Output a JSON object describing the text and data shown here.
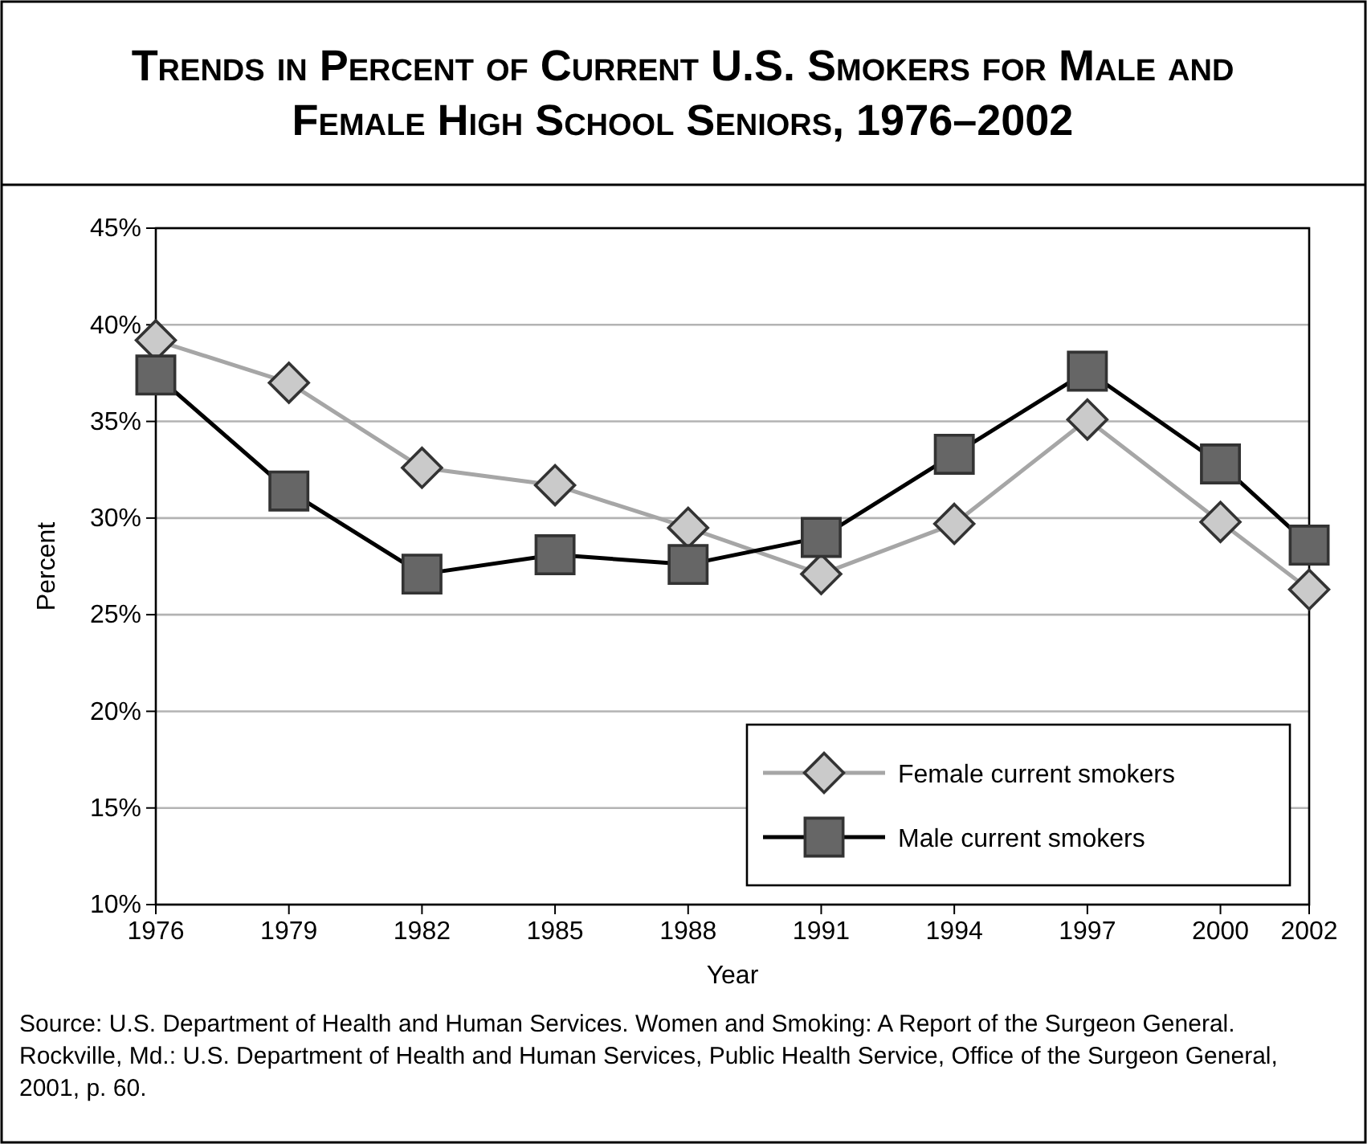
{
  "chart_data": {
    "type": "line",
    "title": "Trends in Percent of Current U.S. Smokers for Male and Female High School Seniors, 1976–2002",
    "xlabel": "Year",
    "ylabel": "Percent",
    "x": [
      1976,
      1979,
      1982,
      1985,
      1988,
      1991,
      1994,
      1997,
      2000,
      2002
    ],
    "series": [
      {
        "name": "Female current smokers",
        "color": "#a6a6a6",
        "marker": "diamond",
        "values": [
          39.2,
          37.0,
          32.6,
          31.7,
          29.5,
          27.1,
          29.7,
          35.1,
          29.8,
          26.3
        ]
      },
      {
        "name": "Male current smokers",
        "color": "#000000",
        "marker": "square",
        "values": [
          37.4,
          31.4,
          27.1,
          28.1,
          27.6,
          29.0,
          33.3,
          37.6,
          32.8,
          28.6
        ]
      }
    ],
    "xlim": [
      1976,
      2002
    ],
    "xticks": [
      1976,
      1979,
      1982,
      1985,
      1988,
      1991,
      1994,
      1997,
      2000,
      2002
    ],
    "ylim": [
      10,
      45
    ],
    "yticks": [
      {
        "value": 10,
        "label": "10%"
      },
      {
        "value": 15,
        "label": "15%"
      },
      {
        "value": 20,
        "label": "20%"
      },
      {
        "value": 25,
        "label": "25%"
      },
      {
        "value": 30,
        "label": "30%"
      },
      {
        "value": 35,
        "label": "35%"
      },
      {
        "value": 40,
        "label": "40%"
      },
      {
        "value": 45,
        "label": "45%"
      }
    ],
    "grid": "y",
    "legend": "bottom right",
    "annotations": [
      "Source: U.S. Department of Health and Human Services. Women and Smoking: A Report of the Surgeon General. Rockville, Md.: U.S. Department of Health and Human Services, Public Health Service, Office of the Surgeon General, 2001, p. 60."
    ]
  }
}
